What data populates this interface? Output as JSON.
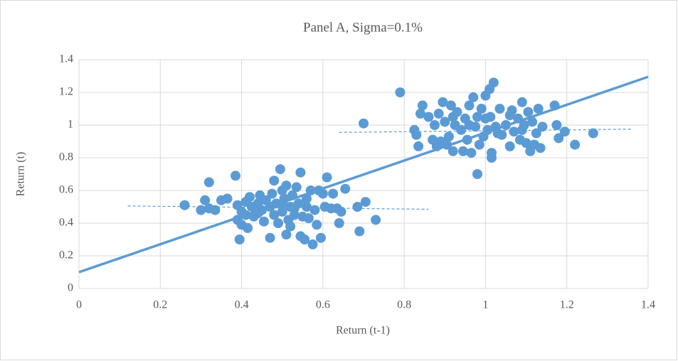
{
  "chart_data": {
    "type": "scatter",
    "title": "Panel A, Sigma=0.1%",
    "x_label": "Return (t-1)",
    "y_label": "Return (t)",
    "xlim": [
      0,
      1.4
    ],
    "ylim": [
      0,
      1.4
    ],
    "xticks": [
      0,
      0.2,
      0.4,
      0.6,
      0.8,
      1,
      1.2,
      1.4
    ],
    "yticks": [
      0,
      0.2,
      0.4,
      0.6,
      0.8,
      1,
      1.2,
      1.4
    ],
    "grid": true,
    "series": [
      {
        "color": "#5b9bd5",
        "x": [
          0.26,
          0.3,
          0.31,
          0.32,
          0.32,
          0.335,
          0.35,
          0.365,
          0.385,
          0.39,
          0.39,
          0.395,
          0.4,
          0.4,
          0.41,
          0.41,
          0.415,
          0.42,
          0.425,
          0.43,
          0.44,
          0.445,
          0.45,
          0.455,
          0.46,
          0.47,
          0.475,
          0.48,
          0.48,
          0.485,
          0.49,
          0.495,
          0.5,
          0.5,
          0.505,
          0.51,
          0.51,
          0.515,
          0.52,
          0.525,
          0.53,
          0.535,
          0.54,
          0.545,
          0.545,
          0.55,
          0.555,
          0.56,
          0.565,
          0.57,
          0.575,
          0.58,
          0.585,
          0.59,
          0.595,
          0.6,
          0.605,
          0.61,
          0.62,
          0.625,
          0.635,
          0.64,
          0.645,
          0.655,
          0.685,
          0.69,
          0.705,
          0.73,
          0.47,
          0.52,
          0.5,
          0.56,
          0.44,
          0.53,
          0.7,
          0.79,
          0.825,
          0.83,
          0.835,
          0.84,
          0.845,
          0.86,
          0.87,
          0.875,
          0.88,
          0.885,
          0.89,
          0.895,
          0.9,
          0.905,
          0.91,
          0.915,
          0.92,
          0.925,
          0.93,
          0.94,
          0.945,
          0.95,
          0.955,
          0.96,
          0.965,
          0.97,
          0.975,
          0.98,
          0.98,
          0.985,
          0.99,
          0.995,
          1.0,
          1.005,
          1.01,
          1.012,
          1.015,
          1.015,
          1.02,
          1.025,
          1.03,
          1.035,
          1.04,
          1.05,
          1.06,
          1.065,
          1.07,
          1.08,
          1.085,
          1.09,
          1.095,
          1.1,
          1.105,
          1.11,
          1.115,
          1.12,
          1.125,
          1.13,
          1.135,
          1.14,
          1.17,
          1.175,
          1.18,
          1.195,
          1.22,
          1.265,
          0.96,
          1.0,
          1.06,
          0.92,
          1.09
        ],
        "values": [
          0.51,
          0.48,
          0.54,
          0.65,
          0.49,
          0.48,
          0.54,
          0.55,
          0.69,
          0.51,
          0.42,
          0.3,
          0.47,
          0.39,
          0.53,
          0.45,
          0.37,
          0.56,
          0.5,
          0.44,
          0.52,
          0.57,
          0.48,
          0.41,
          0.54,
          0.31,
          0.58,
          0.66,
          0.45,
          0.52,
          0.4,
          0.73,
          0.6,
          0.47,
          0.55,
          0.33,
          0.63,
          0.42,
          0.5,
          0.57,
          0.45,
          0.62,
          0.52,
          0.71,
          0.32,
          0.44,
          0.3,
          0.5,
          0.43,
          0.6,
          0.27,
          0.48,
          0.39,
          0.6,
          0.31,
          0.58,
          0.5,
          0.68,
          0.49,
          0.58,
          0.49,
          0.4,
          0.47,
          0.61,
          0.5,
          0.35,
          0.53,
          0.42,
          0.5,
          0.38,
          0.52,
          0.55,
          0.46,
          0.49,
          1.01,
          1.2,
          0.97,
          0.94,
          0.87,
          1.07,
          1.12,
          1.05,
          0.91,
          1.0,
          0.87,
          1.07,
          0.9,
          1.14,
          1.02,
          0.88,
          0.93,
          1.12,
          0.84,
          1.0,
          1.08,
          0.97,
          0.84,
          1.04,
          0.91,
          1.12,
          0.83,
          1.17,
          0.99,
          0.7,
          1.05,
          0.88,
          1.1,
          0.93,
          1.18,
          0.97,
          1.22,
          1.05,
          0.8,
          0.83,
          1.26,
          0.99,
          0.95,
          1.1,
          0.94,
          1.0,
          0.87,
          1.09,
          0.96,
          1.04,
          0.91,
          1.14,
          1.0,
          0.89,
          1.08,
          0.84,
          1.02,
          0.88,
          0.95,
          1.1,
          0.86,
          0.99,
          1.12,
          1.0,
          0.92,
          0.96,
          0.88,
          0.95,
          1.0,
          1.04,
          1.06,
          1.05,
          0.97
        ]
      }
    ],
    "trendlines": [
      {
        "color": "#5b9bd5",
        "dashed": false,
        "x": [
          0,
          1.4
        ],
        "values": [
          0.1,
          1.295
        ]
      },
      {
        "color": "#5b9bd5",
        "dashed": true,
        "x": [
          0.12,
          0.86
        ],
        "values": [
          0.505,
          0.485
        ]
      },
      {
        "color": "#5b9bd5",
        "dashed": true,
        "x": [
          0.64,
          1.36
        ],
        "values": [
          0.955,
          0.975
        ]
      }
    ]
  }
}
